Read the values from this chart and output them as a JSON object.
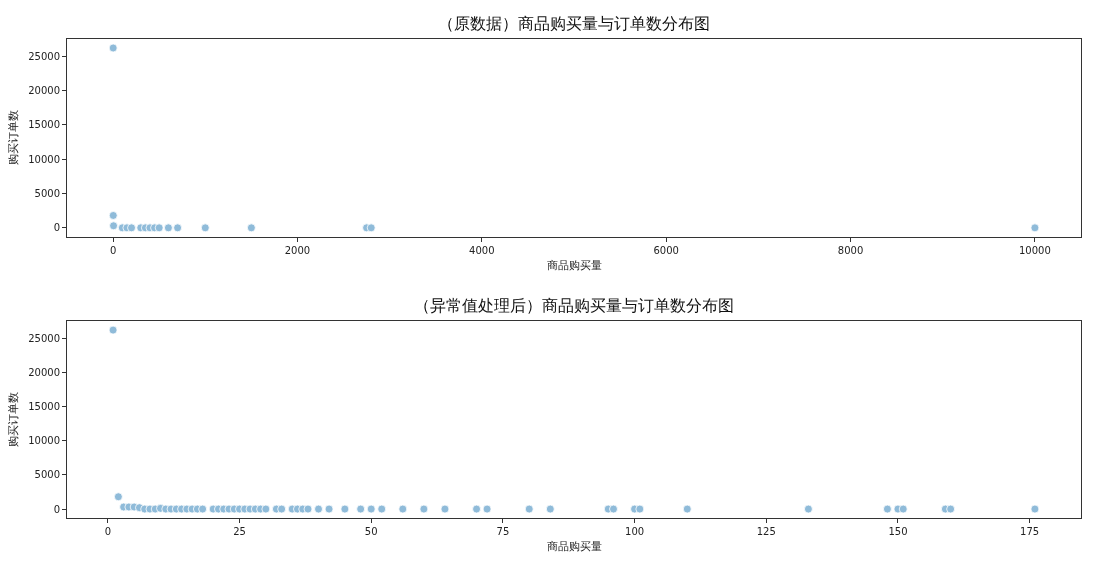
{
  "chart_data": [
    {
      "type": "scatter",
      "title": "（原数据）商品购买量与订单数分布图",
      "xlabel": "商品购买量",
      "ylabel": "购买订单数",
      "marker": "circle",
      "xlim": [
        -500,
        10500
      ],
      "xticks": [
        0,
        2000,
        4000,
        6000,
        8000,
        10000
      ],
      "ylim": [
        -1310,
        27510
      ],
      "yticks": [
        0,
        5000,
        10000,
        15000,
        20000,
        25000
      ],
      "series": [
        {
          "color": "#8fbbd9",
          "x": [
            1,
            2,
            5,
            100,
            150,
            200,
            300,
            350,
            400,
            450,
            500,
            600,
            700,
            1000,
            1500,
            2750,
            2800,
            10000
          ],
          "values": [
            26200,
            1800,
            300,
            0,
            0,
            0,
            0,
            0,
            0,
            0,
            0,
            0,
            0,
            0,
            0,
            0,
            0,
            0
          ]
        }
      ]
    },
    {
      "type": "scatter",
      "title": "（异常值处理后）商品购买量与订单数分布图",
      "xlabel": "商品购买量",
      "ylabel": "购买订单数",
      "marker": "circle",
      "xlim": [
        -7.75,
        184.75
      ],
      "xticks": [
        0,
        25,
        50,
        75,
        100,
        125,
        150,
        175
      ],
      "ylim": [
        -1310,
        27510
      ],
      "yticks": [
        0,
        5000,
        10000,
        15000,
        20000,
        25000
      ],
      "series": [
        {
          "color": "#8fbbd9",
          "x": [
            1,
            2,
            3,
            4,
            5,
            6,
            7,
            8,
            9,
            10,
            11,
            12,
            13,
            14,
            15,
            16,
            17,
            18,
            20,
            21,
            22,
            23,
            24,
            25,
            26,
            27,
            28,
            29,
            30,
            32,
            33,
            35,
            36,
            37,
            38,
            40,
            42,
            45,
            48,
            50,
            52,
            56,
            60,
            64,
            70,
            72,
            80,
            84,
            95,
            96,
            100,
            101,
            110,
            133,
            148,
            150,
            151,
            159,
            160,
            176
          ],
          "values": [
            26200,
            1800,
            300,
            300,
            300,
            200,
            0,
            0,
            0,
            100,
            0,
            0,
            0,
            0,
            0,
            0,
            0,
            0,
            0,
            0,
            0,
            0,
            0,
            0,
            0,
            0,
            0,
            0,
            0,
            0,
            0,
            0,
            0,
            0,
            0,
            0,
            0,
            0,
            0,
            0,
            0,
            0,
            0,
            0,
            0,
            0,
            0,
            0,
            0,
            0,
            0,
            0,
            0,
            0,
            0,
            0,
            0,
            0,
            0,
            0
          ]
        }
      ]
    }
  ]
}
